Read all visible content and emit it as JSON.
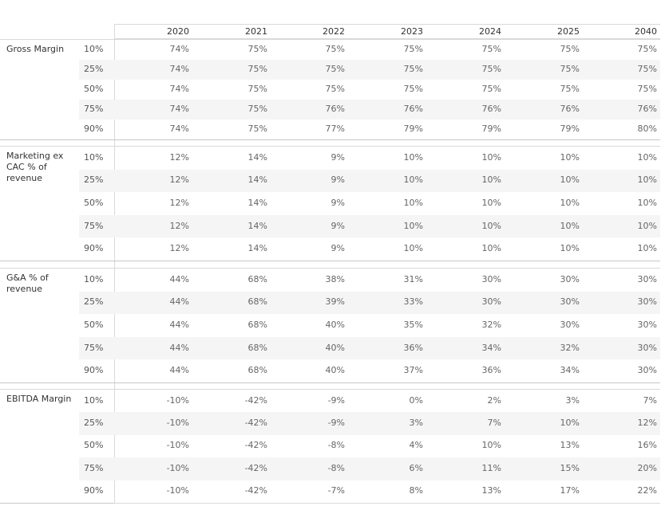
{
  "chart_data": {
    "type": "table",
    "columns": [
      "2020",
      "2021",
      "2022",
      "2023",
      "2024",
      "2025",
      "2040"
    ],
    "sections": [
      {
        "label": "Gross Margin",
        "rows": [
          {
            "percentile": "10%",
            "values": [
              "74%",
              "75%",
              "75%",
              "75%",
              "75%",
              "75%",
              "75%"
            ]
          },
          {
            "percentile": "25%",
            "values": [
              "74%",
              "75%",
              "75%",
              "75%",
              "75%",
              "75%",
              "75%"
            ]
          },
          {
            "percentile": "50%",
            "values": [
              "74%",
              "75%",
              "75%",
              "75%",
              "75%",
              "75%",
              "75%"
            ]
          },
          {
            "percentile": "75%",
            "values": [
              "74%",
              "75%",
              "76%",
              "76%",
              "76%",
              "76%",
              "76%"
            ]
          },
          {
            "percentile": "90%",
            "values": [
              "74%",
              "75%",
              "77%",
              "79%",
              "79%",
              "79%",
              "80%"
            ]
          }
        ]
      },
      {
        "label": "Marketing ex CAC % of revenue",
        "rows": [
          {
            "percentile": "10%",
            "values": [
              "12%",
              "14%",
              "9%",
              "10%",
              "10%",
              "10%",
              "10%"
            ]
          },
          {
            "percentile": "25%",
            "values": [
              "12%",
              "14%",
              "9%",
              "10%",
              "10%",
              "10%",
              "10%"
            ]
          },
          {
            "percentile": "50%",
            "values": [
              "12%",
              "14%",
              "9%",
              "10%",
              "10%",
              "10%",
              "10%"
            ]
          },
          {
            "percentile": "75%",
            "values": [
              "12%",
              "14%",
              "9%",
              "10%",
              "10%",
              "10%",
              "10%"
            ]
          },
          {
            "percentile": "90%",
            "values": [
              "12%",
              "14%",
              "9%",
              "10%",
              "10%",
              "10%",
              "10%"
            ]
          }
        ]
      },
      {
        "label": "G&A % of revenue",
        "rows": [
          {
            "percentile": "10%",
            "values": [
              "44%",
              "68%",
              "38%",
              "31%",
              "30%",
              "30%",
              "30%"
            ]
          },
          {
            "percentile": "25%",
            "values": [
              "44%",
              "68%",
              "39%",
              "33%",
              "30%",
              "30%",
              "30%"
            ]
          },
          {
            "percentile": "50%",
            "values": [
              "44%",
              "68%",
              "40%",
              "35%",
              "32%",
              "30%",
              "30%"
            ]
          },
          {
            "percentile": "75%",
            "values": [
              "44%",
              "68%",
              "40%",
              "36%",
              "34%",
              "32%",
              "30%"
            ]
          },
          {
            "percentile": "90%",
            "values": [
              "44%",
              "68%",
              "40%",
              "37%",
              "36%",
              "34%",
              "30%"
            ]
          }
        ]
      },
      {
        "label": "EBITDA Margin",
        "rows": [
          {
            "percentile": "10%",
            "values": [
              "-10%",
              "-42%",
              "-9%",
              "0%",
              "2%",
              "3%",
              "7%"
            ]
          },
          {
            "percentile": "25%",
            "values": [
              "-10%",
              "-42%",
              "-9%",
              "3%",
              "7%",
              "10%",
              "12%"
            ]
          },
          {
            "percentile": "50%",
            "values": [
              "-10%",
              "-42%",
              "-8%",
              "4%",
              "10%",
              "13%",
              "16%"
            ]
          },
          {
            "percentile": "75%",
            "values": [
              "-10%",
              "-42%",
              "-8%",
              "6%",
              "11%",
              "15%",
              "20%"
            ]
          },
          {
            "percentile": "90%",
            "values": [
              "-10%",
              "-42%",
              "-7%",
              "8%",
              "13%",
              "17%",
              "22%"
            ]
          }
        ]
      }
    ]
  },
  "colors": {
    "grid": "#d9d9d9",
    "band": "#f5f5f5",
    "text": "#333333",
    "value_text": "#666666"
  }
}
